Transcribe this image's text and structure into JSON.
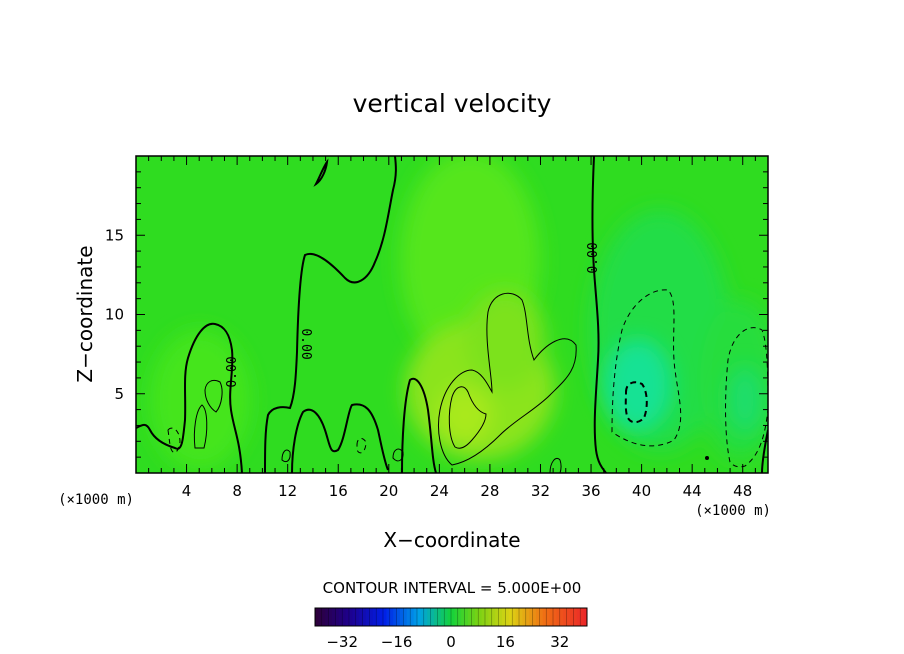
{
  "chart_data": {
    "type": "heatmap",
    "title": "vertical velocity",
    "xlabel": "X−coordinate",
    "ylabel": "Z−coordinate",
    "x_unit": "(×1000 m)",
    "y_unit": "(×1000 m)",
    "xlim": [
      0,
      50
    ],
    "ylim": [
      0,
      20
    ],
    "x_ticks": [
      4,
      8,
      12,
      16,
      20,
      24,
      28,
      32,
      36,
      40,
      44,
      48
    ],
    "x_tick_labels": [
      "4",
      "8",
      "12",
      "16",
      "20",
      "24",
      "28",
      "32",
      "36",
      "40",
      "44",
      "48"
    ],
    "y_ticks": [
      5,
      10,
      15
    ],
    "y_tick_labels": [
      "5",
      "10",
      "15"
    ],
    "contour_interval_text": "CONTOUR INTERVAL = 5.000E+00",
    "contour_labels": [
      "0.00",
      "0.00",
      "0.00"
    ],
    "colorbar": {
      "range": [
        -40,
        40
      ],
      "ticks": [
        -32,
        -16,
        0,
        16,
        32
      ],
      "tick_labels": [
        "−32",
        "−16",
        "0",
        "16",
        "32"
      ]
    },
    "features": [
      {
        "kind": "updraft",
        "x": 25.5,
        "z": 3.5,
        "value": 12
      },
      {
        "kind": "updraft",
        "x": 29,
        "z": 7,
        "value": 7
      },
      {
        "kind": "downdraft",
        "x": 39.5,
        "z": 5,
        "value": -11
      },
      {
        "kind": "downdraft",
        "x": 47,
        "z": 4,
        "value": -6
      }
    ]
  }
}
